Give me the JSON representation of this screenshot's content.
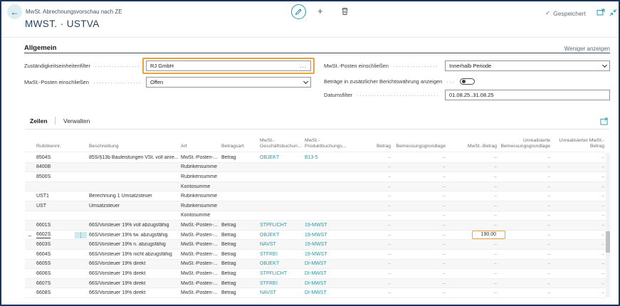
{
  "header": {
    "breadcrumb": "MwSt. Abrechnungsvorschau nach ZE",
    "title": "MWST. · USTVA",
    "saved_label": "Gespeichert",
    "check_glyph": "✓"
  },
  "general": {
    "title": "Allgemein",
    "show_less_label": "Weniger anzeigen",
    "fields_left": [
      {
        "label": "Zuständigkeitseinheitenfilter",
        "value": "RJ GmbH",
        "type": "lookup",
        "highlighted": true
      },
      {
        "label": "MwSt.-Posten einschließen",
        "value": "Offen",
        "type": "select"
      }
    ],
    "fields_right": [
      {
        "label": "MwSt.-Posten einschließen",
        "value": "Innerhalb Periode",
        "type": "select"
      },
      {
        "label": "Beträge in zusätzlicher Berichtswährung anzeigen",
        "value": "off",
        "type": "toggle"
      },
      {
        "label": "Datumsfilter",
        "value": "01.08.25..31.08.25",
        "type": "input"
      }
    ]
  },
  "grid": {
    "tabs": [
      "Zeilen",
      "Verwalten"
    ],
    "columns": [
      "Rubrikennr.",
      "Beschreibung",
      "Art",
      "Betragsart",
      "MwSt.-\nGeschäftsbuchun...",
      "MwSt.-\nProduktbuchungs...",
      "Betrag",
      "Bemessungsgrundlage",
      "MwSt.-Betrag",
      "Unrealisierte\nBemessungsgrundlage",
      "Unrealisierter MwSt.-\nBetrag"
    ],
    "rows": [
      {
        "rubrik": "8504S",
        "beschreibung": "85S/§13b Bauleistungen VSt. voll anre...",
        "art": "MwSt.-Posten-...",
        "betragsart": "Betrag",
        "geschaeftsbuchung": "OBJEKT",
        "produktbuchung": "B13-5",
        "betrag": "–",
        "bemessungsgrundlage": "–",
        "mwst_betrag": "–",
        "unreal_bemessungsgrundlage": "–",
        "unreal_mwst_betrag": "–",
        "selected": false,
        "mwst_highlight": false
      },
      {
        "rubrik": "8400B",
        "beschreibung": "",
        "art": "Rubrikensumme",
        "betragsart": "",
        "geschaeftsbuchung": "",
        "produktbuchung": "",
        "betrag": "–",
        "bemessungsgrundlage": "–",
        "mwst_betrag": "–",
        "unreal_bemessungsgrundlage": "–",
        "unreal_mwst_betrag": "–",
        "selected": false,
        "mwst_highlight": false
      },
      {
        "rubrik": "8500S",
        "beschreibung": "",
        "art": "Rubrikensumme",
        "betragsart": "",
        "geschaeftsbuchung": "",
        "produktbuchung": "",
        "betrag": "–",
        "bemessungsgrundlage": "–",
        "mwst_betrag": "–",
        "unreal_bemessungsgrundlage": "–",
        "unreal_mwst_betrag": "–",
        "selected": false,
        "mwst_highlight": false
      },
      {
        "rubrik": "",
        "beschreibung": "",
        "art": "Kontosumme",
        "betragsart": "",
        "geschaeftsbuchung": "",
        "produktbuchung": "",
        "betrag": "–",
        "bemessungsgrundlage": "–",
        "mwst_betrag": "–",
        "unreal_bemessungsgrundlage": "–",
        "unreal_mwst_betrag": "–",
        "selected": false,
        "mwst_highlight": false
      },
      {
        "rubrik": "UST1",
        "beschreibung": "Berechnung 1 Umsatzsteuer",
        "art": "Rubrikensumme",
        "betragsart": "",
        "geschaeftsbuchung": "",
        "produktbuchung": "",
        "betrag": "–",
        "bemessungsgrundlage": "–",
        "mwst_betrag": "–",
        "unreal_bemessungsgrundlage": "–",
        "unreal_mwst_betrag": "–",
        "selected": false,
        "mwst_highlight": false
      },
      {
        "rubrik": "UST",
        "beschreibung": "Umsatzsteuer",
        "art": "Rubrikensumme",
        "betragsart": "",
        "geschaeftsbuchung": "",
        "produktbuchung": "",
        "betrag": "–",
        "bemessungsgrundlage": "–",
        "mwst_betrag": "–",
        "unreal_bemessungsgrundlage": "–",
        "unreal_mwst_betrag": "–",
        "selected": false,
        "mwst_highlight": false
      },
      {
        "rubrik": "",
        "beschreibung": "",
        "art": "Kontosumme",
        "betragsart": "",
        "geschaeftsbuchung": "",
        "produktbuchung": "",
        "betrag": "–",
        "bemessungsgrundlage": "–",
        "mwst_betrag": "–",
        "unreal_bemessungsgrundlage": "–",
        "unreal_mwst_betrag": "–",
        "selected": false,
        "mwst_highlight": false
      },
      {
        "rubrik": "6601S",
        "beschreibung": "66S/Vorsteuer 19% voll abzugsfähig",
        "art": "MwSt.-Posten-...",
        "betragsart": "Betrag",
        "geschaeftsbuchung": "STPFLICHT",
        "produktbuchung": "19-MWST",
        "betrag": "–",
        "bemessungsgrundlage": "–",
        "mwst_betrag": "–",
        "unreal_bemessungsgrundlage": "–",
        "unreal_mwst_betrag": "–",
        "selected": false,
        "mwst_highlight": false
      },
      {
        "rubrik": "6602S",
        "beschreibung": "66S/Vorsteuer 19% tw. abzugsfähig",
        "art": "MwSt.-Posten-...",
        "betragsart": "Betrag",
        "geschaeftsbuchung": "OBJEKT",
        "produktbuchung": "19-MWST",
        "betrag": "–",
        "bemessungsgrundlage": "–",
        "mwst_betrag": "190.00",
        "unreal_bemessungsgrundlage": "–",
        "unreal_mwst_betrag": "–",
        "selected": true,
        "mwst_highlight": true
      },
      {
        "rubrik": "6603S",
        "beschreibung": "66S/Vorsteuer 19% n. abzugsfähig",
        "art": "MwSt.-Posten-...",
        "betragsart": "Betrag",
        "geschaeftsbuchung": "NAVST",
        "produktbuchung": "19-MWST",
        "betrag": "–",
        "bemessungsgrundlage": "–",
        "mwst_betrag": "–",
        "unreal_bemessungsgrundlage": "–",
        "unreal_mwst_betrag": "–",
        "selected": false,
        "mwst_highlight": false
      },
      {
        "rubrik": "6604S",
        "beschreibung": "66S/Vorsteuer 19% nicht abzugsfähig",
        "art": "MwSt.-Posten-...",
        "betragsart": "Betrag",
        "geschaeftsbuchung": "STFREI",
        "produktbuchung": "19-MWST",
        "betrag": "–",
        "bemessungsgrundlage": "–",
        "mwst_betrag": "–",
        "unreal_bemessungsgrundlage": "–",
        "unreal_mwst_betrag": "–",
        "selected": false,
        "mwst_highlight": false
      },
      {
        "rubrik": "6605S",
        "beschreibung": "66S/Vorsteuer 19% direkt",
        "art": "MwSt.-Posten-...",
        "betragsart": "Betrag",
        "geschaeftsbuchung": "OBJEKT",
        "produktbuchung": "DI-MWST",
        "betrag": "–",
        "bemessungsgrundlage": "–",
        "mwst_betrag": "–",
        "unreal_bemessungsgrundlage": "–",
        "unreal_mwst_betrag": "–",
        "selected": false,
        "mwst_highlight": false
      },
      {
        "rubrik": "6606S",
        "beschreibung": "66S/Vorsteuer 19% direkt",
        "art": "MwSt.-Posten-...",
        "betragsart": "Betrag",
        "geschaeftsbuchung": "STPFLICHT",
        "produktbuchung": "DI-MWST",
        "betrag": "–",
        "bemessungsgrundlage": "–",
        "mwst_betrag": "–",
        "unreal_bemessungsgrundlage": "–",
        "unreal_mwst_betrag": "–",
        "selected": false,
        "mwst_highlight": false
      },
      {
        "rubrik": "6607S",
        "beschreibung": "66S/Vorsteuer 19% direkt",
        "art": "MwSt.-Posten-...",
        "betragsart": "Betrag",
        "geschaeftsbuchung": "STFREI",
        "produktbuchung": "DI-MWST",
        "betrag": "–",
        "bemessungsgrundlage": "–",
        "mwst_betrag": "–",
        "unreal_bemessungsgrundlage": "–",
        "unreal_mwst_betrag": "–",
        "selected": false,
        "mwst_highlight": false
      },
      {
        "rubrik": "6608S",
        "beschreibung": "66S/Vorsteuer 19% direkt",
        "art": "MwSt.-Posten-...",
        "betragsart": "Betrag",
        "geschaeftsbuchung": "NAVST",
        "produktbuchung": "DI-MWST",
        "betrag": "–",
        "bemessungsgrundlage": "–",
        "mwst_betrag": "–",
        "unreal_bemessungsgrundlage": "–",
        "unreal_mwst_betrag": "–",
        "selected": false,
        "mwst_highlight": false
      }
    ],
    "colors": {
      "link": "#2899a6",
      "highlight": "#e8a33d",
      "frame": "#1a3560"
    }
  }
}
